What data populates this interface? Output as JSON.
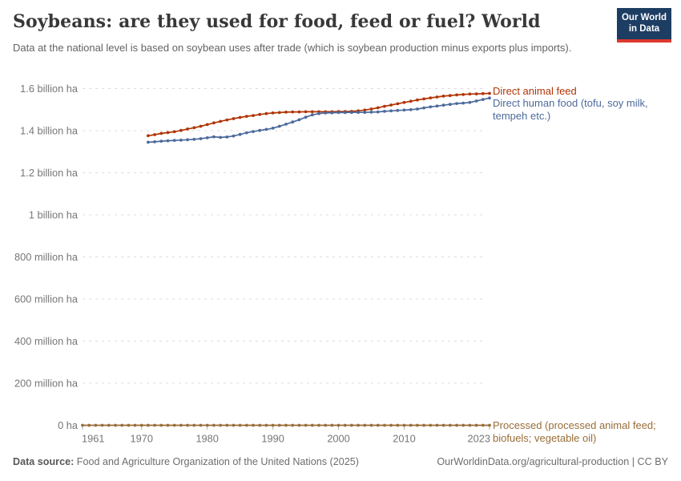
{
  "header": {
    "title": "Soybeans: are they used for food, feed or fuel? World",
    "subtitle": "Data at the national level is based on soybean uses after trade (which is soybean production minus exports plus imports).",
    "logo": {
      "line1": "Our World",
      "line2": "in Data"
    }
  },
  "colors": {
    "animal_feed": "#B13507",
    "human_food": "#4C6A9C",
    "processed": "#996D39",
    "grid": "#dcdcdc",
    "axis_text": "#767676",
    "logo_bg": "#1d3d63",
    "logo_stripe": "#dc382d"
  },
  "chart_data": {
    "type": "line",
    "title": "Soybeans: are they used for food, feed or fuel? World",
    "xlabel": "",
    "ylabel": "",
    "values_unit": "million ha",
    "xlim": [
      1961,
      2023
    ],
    "ylim": [
      0,
      1600
    ],
    "grid": true,
    "legend_position": "right-of-line-ends",
    "x_ticks": [
      1961,
      1970,
      1980,
      1990,
      2000,
      2010,
      2023
    ],
    "y_ticks": [
      {
        "value": 0,
        "label": "0 ha"
      },
      {
        "value": 200,
        "label": "200 million ha"
      },
      {
        "value": 400,
        "label": "400 million ha"
      },
      {
        "value": 600,
        "label": "600 million ha"
      },
      {
        "value": 800,
        "label": "800 million ha"
      },
      {
        "value": 1000,
        "label": "1 billion ha"
      },
      {
        "value": 1200,
        "label": "1.2 billion ha"
      },
      {
        "value": 1400,
        "label": "1.4 billion ha"
      },
      {
        "value": 1600,
        "label": "1.6 billion ha"
      }
    ],
    "series": [
      {
        "name": "Direct animal feed",
        "label_lines": [
          "Direct animal feed"
        ],
        "color": "#B13507",
        "start_year": 1971,
        "values": [
          1376,
          1381,
          1387,
          1391,
          1395,
          1401,
          1408,
          1414,
          1421,
          1429,
          1437,
          1444,
          1451,
          1457,
          1463,
          1468,
          1472,
          1477,
          1481,
          1484,
          1486,
          1488,
          1489,
          1489,
          1490,
          1490,
          1490,
          1490,
          1490,
          1491,
          1491,
          1492,
          1494,
          1498,
          1503,
          1509,
          1516,
          1522,
          1528,
          1534,
          1540,
          1546,
          1551,
          1556,
          1560,
          1564,
          1567,
          1570,
          1572,
          1574,
          1575,
          1576,
          1577
        ]
      },
      {
        "name": "Direct human food (tofu, soy milk, tempeh etc.)",
        "label_lines": [
          "Direct human food (tofu, soy milk,",
          "tempeh etc.)"
        ],
        "color": "#4C6A9C",
        "start_year": 1971,
        "values": [
          1345,
          1347,
          1350,
          1352,
          1354,
          1355,
          1357,
          1359,
          1362,
          1366,
          1371,
          1368,
          1370,
          1375,
          1382,
          1390,
          1396,
          1401,
          1406,
          1412,
          1421,
          1431,
          1441,
          1452,
          1464,
          1475,
          1481,
          1484,
          1485,
          1486,
          1486,
          1487,
          1487,
          1487,
          1488,
          1489,
          1492,
          1494,
          1496,
          1498,
          1500,
          1503,
          1508,
          1513,
          1517,
          1521,
          1525,
          1529,
          1531,
          1534,
          1541,
          1548,
          1555
        ]
      },
      {
        "name": "Processed (processed animal feed; biofuels; vegetable oil)",
        "label_lines": [
          "Processed (processed animal feed;",
          "biofuels; vegetable oil)"
        ],
        "color": "#996D39",
        "start_year": 1961,
        "values": [
          0,
          0,
          0,
          0,
          0,
          0,
          0,
          0,
          0,
          0,
          0,
          0,
          0,
          0,
          0,
          0,
          0,
          0,
          0,
          0,
          0,
          0,
          0,
          0,
          0,
          0,
          0,
          0,
          0,
          0,
          0,
          0,
          0,
          0,
          0,
          0,
          0,
          0,
          0,
          0,
          0,
          0,
          0,
          0,
          0,
          0,
          0,
          0,
          0,
          0,
          0,
          0,
          0,
          0,
          0,
          0,
          0,
          0,
          0,
          0,
          0,
          0,
          0
        ]
      }
    ]
  },
  "footer": {
    "source_label": "Data source:",
    "source_text": "Food and Agriculture Organization of the United Nations (2025)",
    "credit": "OurWorldinData.org/agricultural-production | CC BY"
  }
}
